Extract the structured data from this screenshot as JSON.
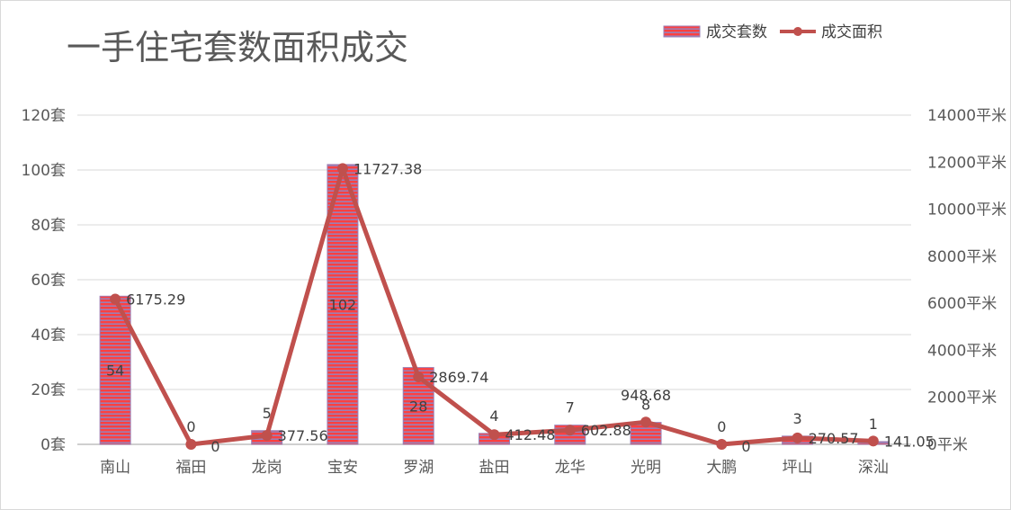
{
  "chart_data": {
    "type": "bar+line",
    "title": "一手住宅套数面积成交",
    "categories": [
      "南山",
      "福田",
      "龙岗",
      "宝安",
      "罗湖",
      "盐田",
      "龙华",
      "光明",
      "大鹏",
      "坪山",
      "深汕"
    ],
    "series": [
      {
        "name": "成交套数",
        "type": "bar",
        "axis": "left",
        "values": [
          54,
          0,
          5,
          102,
          28,
          4,
          7,
          8,
          0,
          3,
          1
        ],
        "labels": [
          "54",
          "0",
          "5",
          "102",
          "28",
          "4",
          "7",
          "8",
          "0",
          "3",
          "1"
        ]
      },
      {
        "name": "成交面积",
        "type": "line",
        "axis": "right",
        "values": [
          6175.29,
          0,
          377.56,
          11727.38,
          2869.74,
          412.48,
          602.88,
          948.68,
          0,
          270.57,
          141.05
        ],
        "labels": [
          "6175.29",
          "0",
          "377.56",
          "11727.38",
          "2869.74",
          "412.48",
          "602.88",
          "948.68",
          "0",
          "270.57",
          "141.05"
        ]
      }
    ],
    "y_left": {
      "min": 0,
      "max": 120,
      "step": 20,
      "unit": "套",
      "ticks": [
        "0套",
        "20套",
        "40套",
        "60套",
        "80套",
        "100套",
        "120套"
      ]
    },
    "y_right": {
      "min": 0,
      "max": 14000,
      "step": 2000,
      "unit": "平米",
      "ticks": [
        "0平米",
        "2000平米",
        "4000平米",
        "6000平米",
        "8000平米",
        "10000平米",
        "12000平米",
        "14000平米"
      ]
    },
    "grid": true,
    "legend": "top-right",
    "colors": {
      "bar": "#ff4040",
      "bar_stripe": "#9b7fb5",
      "line": "#c0504d",
      "grid": "#d9d9d9",
      "text": "#595959"
    }
  }
}
